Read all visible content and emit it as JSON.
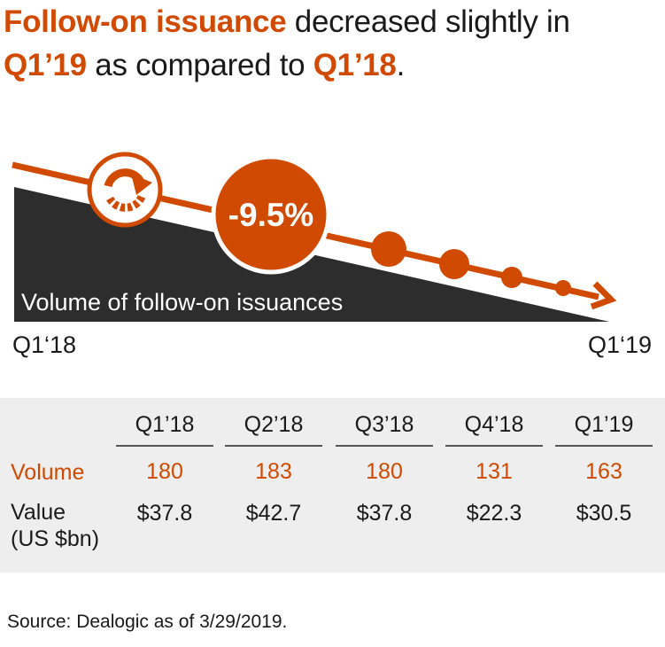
{
  "headline": {
    "part1": "Follow-on issuance",
    "part2": " decreased slightly in ",
    "part3": "Q1’19",
    "part4": " as compared to ",
    "part5": "Q1’18",
    "part6": "."
  },
  "graphic": {
    "change_badge": "-9.5%",
    "area_label": "Volume of follow-on issuances",
    "start_label": "Q1‘18",
    "end_label": "Q1‘19"
  },
  "chart_data": {
    "type": "table",
    "title": "Follow-on issuance decreased slightly in Q1’19 as compared to Q1’18.",
    "columns": [
      "Q1’18",
      "Q2’18",
      "Q3’18",
      "Q4’18",
      "Q1’19"
    ],
    "rows": [
      {
        "label": "Volume",
        "values": [
          180,
          183,
          180,
          131,
          163
        ],
        "display": [
          "180",
          "183",
          "180",
          "131",
          "163"
        ]
      },
      {
        "label": "Value\n(US $bn)",
        "values": [
          37.8,
          42.7,
          37.8,
          22.3,
          30.5
        ],
        "display": [
          "$37.8",
          "$42.7",
          "$37.8",
          "$22.3",
          "$30.5"
        ]
      }
    ],
    "change_pct": -9.5
  },
  "table": {
    "volume_label": "Volume",
    "value_label_line1": "Value",
    "value_label_line2": "(US $bn)"
  },
  "source": "Source: Dealogic as of 3/29/2019.",
  "colors": {
    "accent": "#d04a02",
    "dark": "#2d2d2d",
    "panel": "#eeeeee"
  }
}
